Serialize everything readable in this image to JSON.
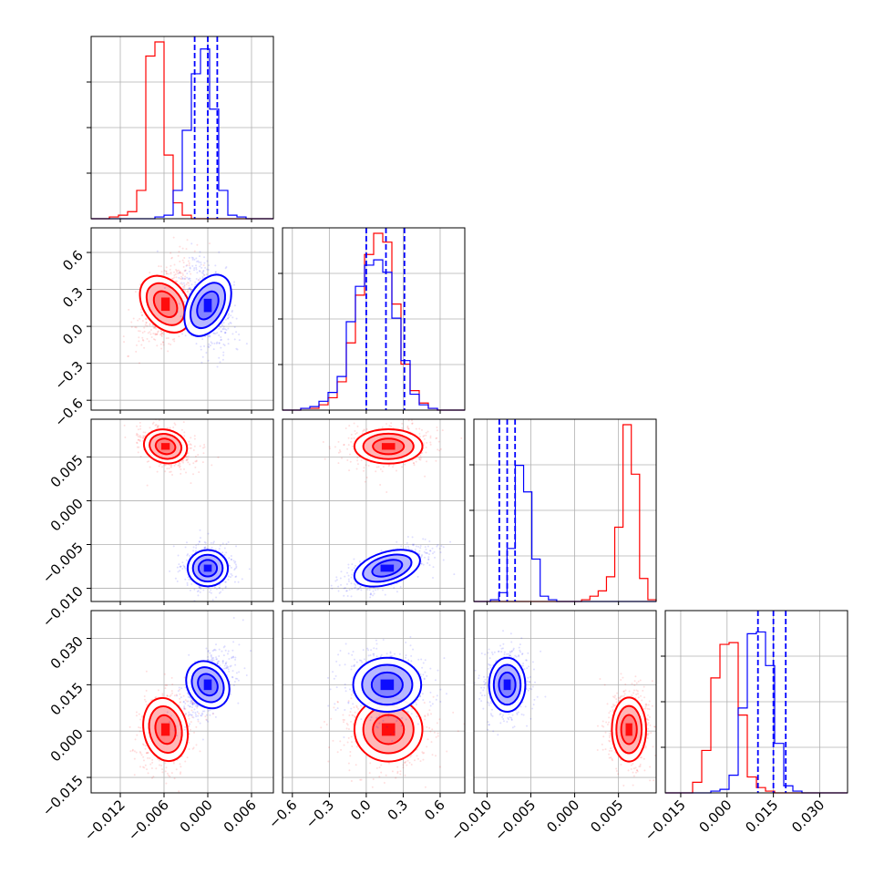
{
  "colors": {
    "set_a": "#ff0000",
    "set_b": "#0000ff",
    "grid": "#b0b0b0",
    "axes": "#000000"
  },
  "chart_data": {
    "type": "corner",
    "grid": true,
    "params": [
      {
        "range": [
          -0.016,
          0.009
        ],
        "ticks": [
          -0.012,
          -0.006,
          0.0,
          0.006
        ],
        "tick_labels": [
          "−0.012",
          "−0.006",
          "0.000",
          "0.006"
        ]
      },
      {
        "range": [
          -0.68,
          0.8
        ],
        "ticks": [
          -0.6,
          -0.3,
          0.0,
          0.3,
          0.6
        ],
        "tick_labels": [
          "−0.6",
          "−0.3",
          "0.0",
          "0.3",
          "0.6"
        ]
      },
      {
        "range": [
          -0.0115,
          0.0093
        ],
        "ticks": [
          -0.01,
          -0.005,
          0.0,
          0.005
        ],
        "tick_labels": [
          "−0.010",
          "−0.005",
          "0.000",
          "0.005"
        ]
      },
      {
        "range": [
          -0.02,
          0.039
        ],
        "ticks": [
          -0.015,
          0.0,
          0.015,
          0.03
        ],
        "tick_labels": [
          "−0.015",
          "0.000",
          "0.015",
          "0.030"
        ]
      }
    ],
    "series": [
      {
        "color": "#ff0000",
        "mean": [
          -0.0058,
          0.18,
          0.0062,
          0.0005
        ],
        "std": [
          0.0013,
          0.12,
          0.00085,
          0.0045
        ]
      },
      {
        "color": "#0000ff",
        "mean": [
          0.0,
          0.17,
          -0.0077,
          0.015
        ],
        "std": [
          0.0012,
          0.12,
          0.0009,
          0.0038
        ]
      }
    ],
    "hist1d": [
      {
        "edges": [
          -0.016,
          0.009
        ],
        "red": [
          0,
          0,
          1,
          2,
          4,
          16,
          92,
          100,
          36,
          9,
          2,
          0,
          0,
          0,
          0,
          0,
          0,
          0,
          0,
          0
        ],
        "blue": [
          0,
          0,
          0,
          0,
          0,
          0,
          0,
          1,
          2,
          16,
          50,
          82,
          96,
          62,
          16,
          2,
          1,
          0,
          0,
          0
        ]
      },
      {
        "edges": [
          -0.68,
          0.8
        ],
        "red": [
          0,
          0,
          1,
          1,
          3,
          7,
          16,
          38,
          65,
          88,
          100,
          95,
          60,
          26,
          11,
          4,
          1,
          0,
          0,
          0
        ],
        "blue": [
          0,
          0,
          1,
          2,
          5,
          10,
          19,
          50,
          70,
          82,
          85,
          78,
          52,
          28,
          9,
          3,
          1,
          0,
          0,
          0
        ]
      },
      {
        "edges": [
          -0.0115,
          0.0093
        ],
        "red": [
          0,
          0,
          0,
          0,
          0,
          0,
          0,
          0,
          0,
          0,
          0,
          0,
          0,
          1,
          3,
          6,
          14,
          42,
          100,
          72,
          13,
          1
        ],
        "blue": [
          0,
          0,
          1,
          5,
          30,
          77,
          62,
          24,
          3,
          1,
          0,
          0,
          0,
          0,
          0,
          0,
          0,
          0,
          0,
          0,
          0,
          0
        ]
      },
      {
        "edges": [
          -0.02,
          0.039
        ],
        "red": [
          0,
          0,
          0,
          6,
          24,
          65,
          84,
          85,
          44,
          9,
          3,
          1,
          0,
          0,
          0,
          0,
          0,
          0,
          0,
          0
        ],
        "blue": [
          0,
          0,
          0,
          0,
          0,
          1,
          2,
          10,
          48,
          90,
          91,
          72,
          28,
          4,
          1,
          0,
          0,
          0,
          0,
          0
        ]
      }
    ],
    "quantiles_blue": [
      [
        -0.0018,
        0.0,
        0.0013
      ],
      [
        0.0,
        0.16,
        0.31
      ],
      [
        -0.0086,
        -0.0077,
        -0.0068
      ],
      [
        0.01,
        0.015,
        0.019
      ]
    ]
  }
}
